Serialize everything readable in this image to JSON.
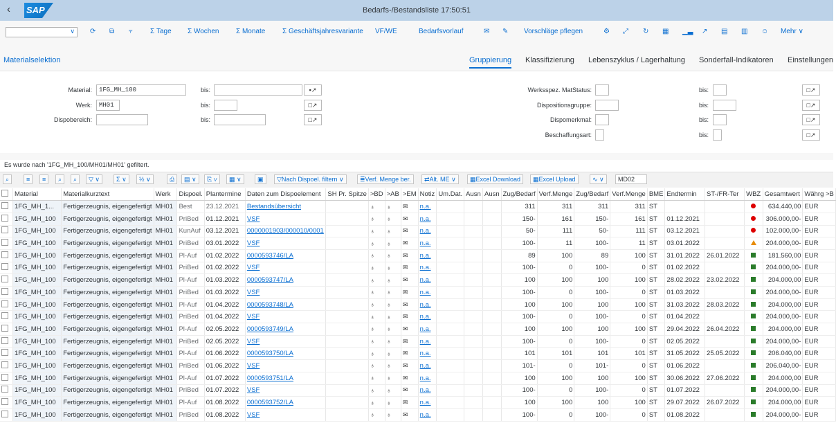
{
  "shell": {
    "title": "Bedarfs-/Bestandsliste 17:50:51",
    "logo": "SAP"
  },
  "toolbar": {
    "items": [
      "Σ Tage",
      "Σ Wochen",
      "Σ Monate",
      "Σ Geschäftsjahresvariante",
      "VF/WE",
      "Bedarfsvorlauf",
      "Vorschläge pflegen",
      "Mehr"
    ]
  },
  "tabs": [
    "Materialselektion",
    "Gruppierung",
    "Klassifizierung",
    "Lebenszyklus / Lagerhaltung",
    "Sonderfall-Indikatoren",
    "Einstellungen"
  ],
  "sel": {
    "labels": {
      "material": "Material:",
      "werk": "Werk:",
      "dispobereich": "Dispobereich:",
      "bis": "bis:",
      "werksspez": "Werksspez. MatStatus:",
      "dispogruppe": "Dispositionsgruppe:",
      "dispomerkmal": "Dispomerkmal:",
      "beschaffungsart": "Beschaffungsart:"
    },
    "values": {
      "material": "1FG_MH_100",
      "werk": "MH01"
    }
  },
  "status": "Es wurde nach '1FG_MH_100/MH01/MH01' gefiltert.",
  "gridtb": {
    "filter": "Nach Dispoel. filtern",
    "verf": "Verf. Menge ber.",
    "altme": "Alt. ME",
    "exceldl": "Excel Download",
    "excelul": "Excel Upload",
    "md02": "MD02"
  },
  "columns": [
    "Material",
    "Materialkurztext",
    "Werk",
    "Dispoel.",
    "Plantermine",
    "Daten zum Dispoelement",
    "SH Pr. Spitze",
    ">BD",
    ">AB",
    ">EM",
    "Notiz",
    "Um.Dat.",
    "Ausn",
    "Ausn",
    "Zug/Bedarf",
    "Verf.Menge",
    "Zug/Bedarf",
    "Verf.Menge",
    "BME",
    "Endtermin",
    "ST-/FR-Ter",
    "WBZ",
    "Gesamtwert",
    "Währg >B"
  ],
  "rows": [
    {
      "mat": "1FG_MH_1...",
      "text": "Fertigerzeugnis, eigengefertigt",
      "werk": "MH01",
      "dispo": "Best",
      "datum": "23.12.2021",
      "daten": "Bestandsübersicht",
      "notiz": "n.a.",
      "zb1": "311",
      "vm1": "311",
      "zb2": "311",
      "vm2": "311",
      "bme": "ST",
      "end": "",
      "st": "",
      "icon": "dot",
      "wert": "634.440,00",
      "wahr": "EUR"
    },
    {
      "mat": "1FG_MH_100",
      "text": "Fertigerzeugnis, eigengefertigt",
      "werk": "MH01",
      "dispo": "PriBed",
      "datum": "01.12.2021",
      "daten": "VSF",
      "notiz": "n.a.",
      "zb1": "150-",
      "vm1": "161",
      "zb2": "150-",
      "vm2": "161",
      "bme": "ST",
      "end": "01.12.2021",
      "st": "",
      "icon": "dot",
      "wert": "306.000,00-",
      "wahr": "EUR"
    },
    {
      "mat": "1FG_MH_100",
      "text": "Fertigerzeugnis, eigengefertigt",
      "werk": "MH01",
      "dispo": "KunAuf",
      "datum": "03.12.2021",
      "daten": "0000001903/000010/0001",
      "notiz": "n.a.",
      "zb1": "50-",
      "vm1": "111",
      "zb2": "50-",
      "vm2": "111",
      "bme": "ST",
      "end": "03.12.2021",
      "st": "",
      "icon": "dot",
      "wert": "102.000,00-",
      "wahr": "EUR"
    },
    {
      "mat": "1FG_MH_100",
      "text": "Fertigerzeugnis, eigengefertigt",
      "werk": "MH01",
      "dispo": "PriBed",
      "datum": "03.01.2022",
      "daten": "VSF",
      "notiz": "n.a.",
      "zb1": "100-",
      "vm1": "11",
      "zb2": "100-",
      "vm2": "11",
      "bme": "ST",
      "end": "03.01.2022",
      "st": "",
      "icon": "tri",
      "wert": "204.000,00-",
      "wahr": "EUR"
    },
    {
      "mat": "1FG_MH_100",
      "text": "Fertigerzeugnis, eigengefertigt",
      "werk": "MH01",
      "dispo": "Pl-Auf",
      "datum": "01.02.2022",
      "daten": "0000593746/LA",
      "notiz": "n.a.",
      "zb1": "89",
      "vm1": "100",
      "zb2": "89",
      "vm2": "100",
      "bme": "ST",
      "end": "31.01.2022",
      "st": "26.01.2022",
      "icon": "sq",
      "wert": "181.560,00",
      "wahr": "EUR"
    },
    {
      "mat": "1FG_MH_100",
      "text": "Fertigerzeugnis, eigengefertigt",
      "werk": "MH01",
      "dispo": "PriBed",
      "datum": "01.02.2022",
      "daten": "VSF",
      "notiz": "n.a.",
      "zb1": "100-",
      "vm1": "0",
      "zb2": "100-",
      "vm2": "0",
      "bme": "ST",
      "end": "01.02.2022",
      "st": "",
      "icon": "sq",
      "wert": "204.000,00-",
      "wahr": "EUR"
    },
    {
      "mat": "1FG_MH_100",
      "text": "Fertigerzeugnis, eigengefertigt",
      "werk": "MH01",
      "dispo": "Pl-Auf",
      "datum": "01.03.2022",
      "daten": "0000593747/LA",
      "notiz": "n.a.",
      "zb1": "100",
      "vm1": "100",
      "zb2": "100",
      "vm2": "100",
      "bme": "ST",
      "end": "28.02.2022",
      "st": "23.02.2022",
      "icon": "sq",
      "wert": "204.000,00",
      "wahr": "EUR"
    },
    {
      "mat": "1FG_MH_100",
      "text": "Fertigerzeugnis, eigengefertigt",
      "werk": "MH01",
      "dispo": "PriBed",
      "datum": "01.03.2022",
      "daten": "VSF",
      "notiz": "n.a.",
      "zb1": "100-",
      "vm1": "0",
      "zb2": "100-",
      "vm2": "0",
      "bme": "ST",
      "end": "01.03.2022",
      "st": "",
      "icon": "sq",
      "wert": "204.000,00-",
      "wahr": "EUR"
    },
    {
      "mat": "1FG_MH_100",
      "text": "Fertigerzeugnis, eigengefertigt",
      "werk": "MH01",
      "dispo": "Pl-Auf",
      "datum": "01.04.2022",
      "daten": "0000593748/LA",
      "notiz": "n.a.",
      "zb1": "100",
      "vm1": "100",
      "zb2": "100",
      "vm2": "100",
      "bme": "ST",
      "end": "31.03.2022",
      "st": "28.03.2022",
      "icon": "sq",
      "wert": "204.000,00",
      "wahr": "EUR"
    },
    {
      "mat": "1FG_MH_100",
      "text": "Fertigerzeugnis, eigengefertigt",
      "werk": "MH01",
      "dispo": "PriBed",
      "datum": "01.04.2022",
      "daten": "VSF",
      "notiz": "n.a.",
      "zb1": "100-",
      "vm1": "0",
      "zb2": "100-",
      "vm2": "0",
      "bme": "ST",
      "end": "01.04.2022",
      "st": "",
      "icon": "sq",
      "wert": "204.000,00-",
      "wahr": "EUR"
    },
    {
      "mat": "1FG_MH_100",
      "text": "Fertigerzeugnis, eigengefertigt",
      "werk": "MH01",
      "dispo": "Pl-Auf",
      "datum": "02.05.2022",
      "daten": "0000593749/LA",
      "notiz": "n.a.",
      "zb1": "100",
      "vm1": "100",
      "zb2": "100",
      "vm2": "100",
      "bme": "ST",
      "end": "29.04.2022",
      "st": "26.04.2022",
      "icon": "sq",
      "wert": "204.000,00",
      "wahr": "EUR"
    },
    {
      "mat": "1FG_MH_100",
      "text": "Fertigerzeugnis, eigengefertigt",
      "werk": "MH01",
      "dispo": "PriBed",
      "datum": "02.05.2022",
      "daten": "VSF",
      "notiz": "n.a.",
      "zb1": "100-",
      "vm1": "0",
      "zb2": "100-",
      "vm2": "0",
      "bme": "ST",
      "end": "02.05.2022",
      "st": "",
      "icon": "sq",
      "wert": "204.000,00-",
      "wahr": "EUR"
    },
    {
      "mat": "1FG_MH_100",
      "text": "Fertigerzeugnis, eigengefertigt",
      "werk": "MH01",
      "dispo": "Pl-Auf",
      "datum": "01.06.2022",
      "daten": "0000593750/LA",
      "notiz": "n.a.",
      "zb1": "101",
      "vm1": "101",
      "zb2": "101",
      "vm2": "101",
      "bme": "ST",
      "end": "31.05.2022",
      "st": "25.05.2022",
      "icon": "sq",
      "wert": "206.040,00",
      "wahr": "EUR"
    },
    {
      "mat": "1FG_MH_100",
      "text": "Fertigerzeugnis, eigengefertigt",
      "werk": "MH01",
      "dispo": "PriBed",
      "datum": "01.06.2022",
      "daten": "VSF",
      "notiz": "n.a.",
      "zb1": "101-",
      "vm1": "0",
      "zb2": "101-",
      "vm2": "0",
      "bme": "ST",
      "end": "01.06.2022",
      "st": "",
      "icon": "sq",
      "wert": "206.040,00-",
      "wahr": "EUR"
    },
    {
      "mat": "1FG_MH_100",
      "text": "Fertigerzeugnis, eigengefertigt",
      "werk": "MH01",
      "dispo": "Pl-Auf",
      "datum": "01.07.2022",
      "daten": "0000593751/LA",
      "notiz": "n.a.",
      "zb1": "100",
      "vm1": "100",
      "zb2": "100",
      "vm2": "100",
      "bme": "ST",
      "end": "30.06.2022",
      "st": "27.06.2022",
      "icon": "sq",
      "wert": "204.000,00",
      "wahr": "EUR"
    },
    {
      "mat": "1FG_MH_100",
      "text": "Fertigerzeugnis, eigengefertigt",
      "werk": "MH01",
      "dispo": "PriBed",
      "datum": "01.07.2022",
      "daten": "VSF",
      "notiz": "n.a.",
      "zb1": "100-",
      "vm1": "0",
      "zb2": "100-",
      "vm2": "0",
      "bme": "ST",
      "end": "01.07.2022",
      "st": "",
      "icon": "sq",
      "wert": "204.000,00-",
      "wahr": "EUR"
    },
    {
      "mat": "1FG_MH_100",
      "text": "Fertigerzeugnis, eigengefertigt",
      "werk": "MH01",
      "dispo": "Pl-Auf",
      "datum": "01.08.2022",
      "daten": "0000593752/LA",
      "notiz": "n.a.",
      "zb1": "100",
      "vm1": "100",
      "zb2": "100",
      "vm2": "100",
      "bme": "ST",
      "end": "29.07.2022",
      "st": "26.07.2022",
      "icon": "sq",
      "wert": "204.000,00",
      "wahr": "EUR"
    },
    {
      "mat": "1FG_MH_100",
      "text": "Fertigerzeugnis, eigengefertigt",
      "werk": "MH01",
      "dispo": "PriBed",
      "datum": "01.08.2022",
      "daten": "VSF",
      "notiz": "n.a.",
      "zb1": "100-",
      "vm1": "0",
      "zb2": "100-",
      "vm2": "0",
      "bme": "ST",
      "end": "01.08.2022",
      "st": "",
      "icon": "sq",
      "wert": "204.000,00-",
      "wahr": "EUR"
    }
  ]
}
